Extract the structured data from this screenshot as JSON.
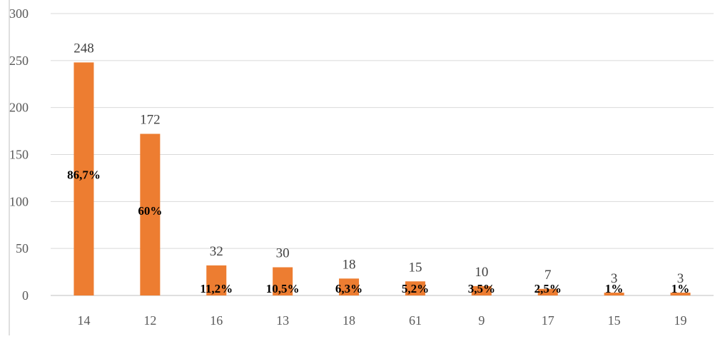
{
  "chart_data": {
    "type": "bar",
    "categories": [
      "14",
      "12",
      "16",
      "13",
      "18",
      "61",
      "9",
      "17",
      "15",
      "19"
    ],
    "values": [
      248,
      172,
      32,
      30,
      18,
      15,
      10,
      7,
      3,
      3
    ],
    "value_labels": [
      "248",
      "172",
      "32",
      "30",
      "18",
      "15",
      "10",
      "7",
      "3",
      "3"
    ],
    "percent_labels": [
      "86,7%",
      "60%",
      "11,2%",
      "10,5%",
      "6,3%",
      "5,2%",
      "3,5%",
      "2,5%",
      "1%",
      "1%"
    ],
    "y_ticks": [
      "0",
      "50",
      "100",
      "150",
      "200",
      "250",
      "300"
    ],
    "ylim": [
      0,
      300
    ],
    "grid": true,
    "legend": "none",
    "bar_color": "#ED7D31",
    "grid_color": "#D9D9D9"
  }
}
